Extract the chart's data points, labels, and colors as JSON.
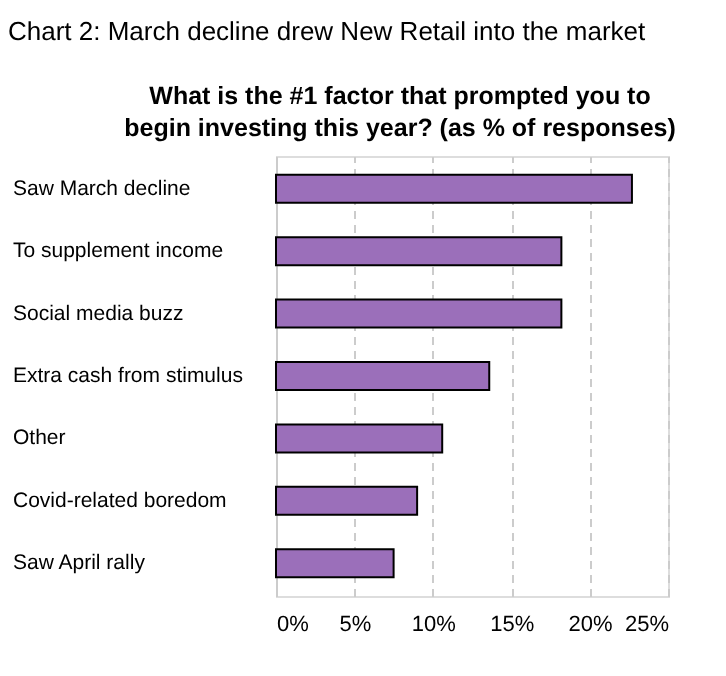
{
  "chart_data": {
    "type": "bar",
    "orientation": "horizontal",
    "title": "Chart 2: March decline drew New Retail into the market",
    "subtitle": "What is the #1 factor that prompted you to begin investing this year? (as % of responses)",
    "categories": [
      "Saw March decline",
      "To supplement income",
      "Social media buzz",
      "Extra cash from stimulus",
      "Other",
      "Covid-related boredom",
      "Saw April rally"
    ],
    "values": [
      22.7,
      18.2,
      18.2,
      13.6,
      10.6,
      9.0,
      7.5
    ],
    "color": "#9b6fba",
    "xlim": [
      0,
      25
    ],
    "xticks": [
      {
        "value": 0,
        "label": "0%"
      },
      {
        "value": 5,
        "label": "5%"
      },
      {
        "value": 10,
        "label": "10%"
      },
      {
        "value": 15,
        "label": "15%"
      },
      {
        "value": 20,
        "label": "20%"
      },
      {
        "value": 25,
        "label": "25%"
      }
    ],
    "grid": "x"
  }
}
